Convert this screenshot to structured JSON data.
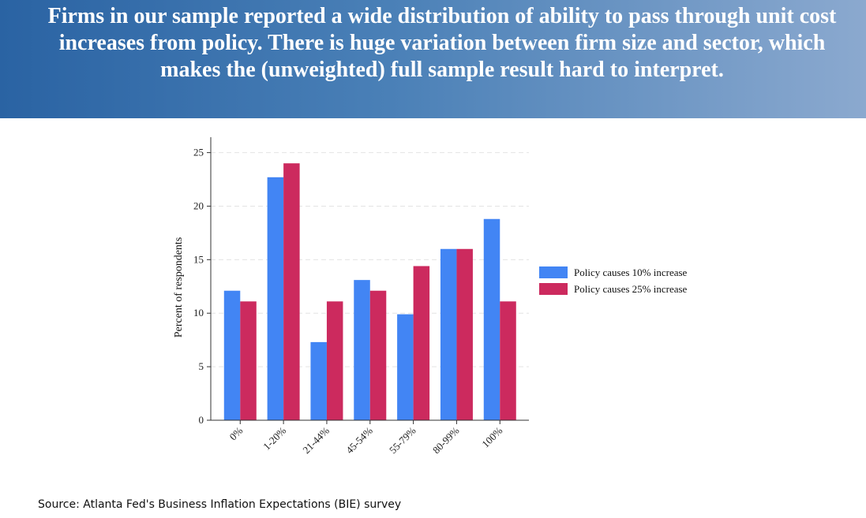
{
  "header": {
    "title": "Firms in our sample reported a wide distribution of ability to pass through unit cost increases from policy. There is huge variation between firm size and sector, which makes the (unweighted) full sample result hard to interpret."
  },
  "chart_data": {
    "type": "bar",
    "title": "",
    "xlabel": "",
    "ylabel": "Percent of respondents",
    "categories": [
      "0%",
      "1-20%",
      "21-44%",
      "45-54%",
      "55-79%",
      "80-99%",
      "100%"
    ],
    "series": [
      {
        "name": "Policy causes 10% increase",
        "color": "#4285f4",
        "values": [
          12.1,
          22.7,
          7.3,
          13.1,
          9.9,
          16.0,
          18.8
        ]
      },
      {
        "name": "Policy causes 25% increase",
        "color": "#cc2a5e",
        "values": [
          11.1,
          24.0,
          11.1,
          12.1,
          14.4,
          16.0,
          11.1
        ]
      }
    ],
    "yticks": [
      0,
      5,
      10,
      15,
      20,
      25
    ],
    "ylim": [
      0,
      26
    ],
    "grid": true,
    "legend_position": "right"
  },
  "footer": {
    "source": "Source: Atlanta Fed's Business Inflation Expectations (BIE) survey"
  }
}
